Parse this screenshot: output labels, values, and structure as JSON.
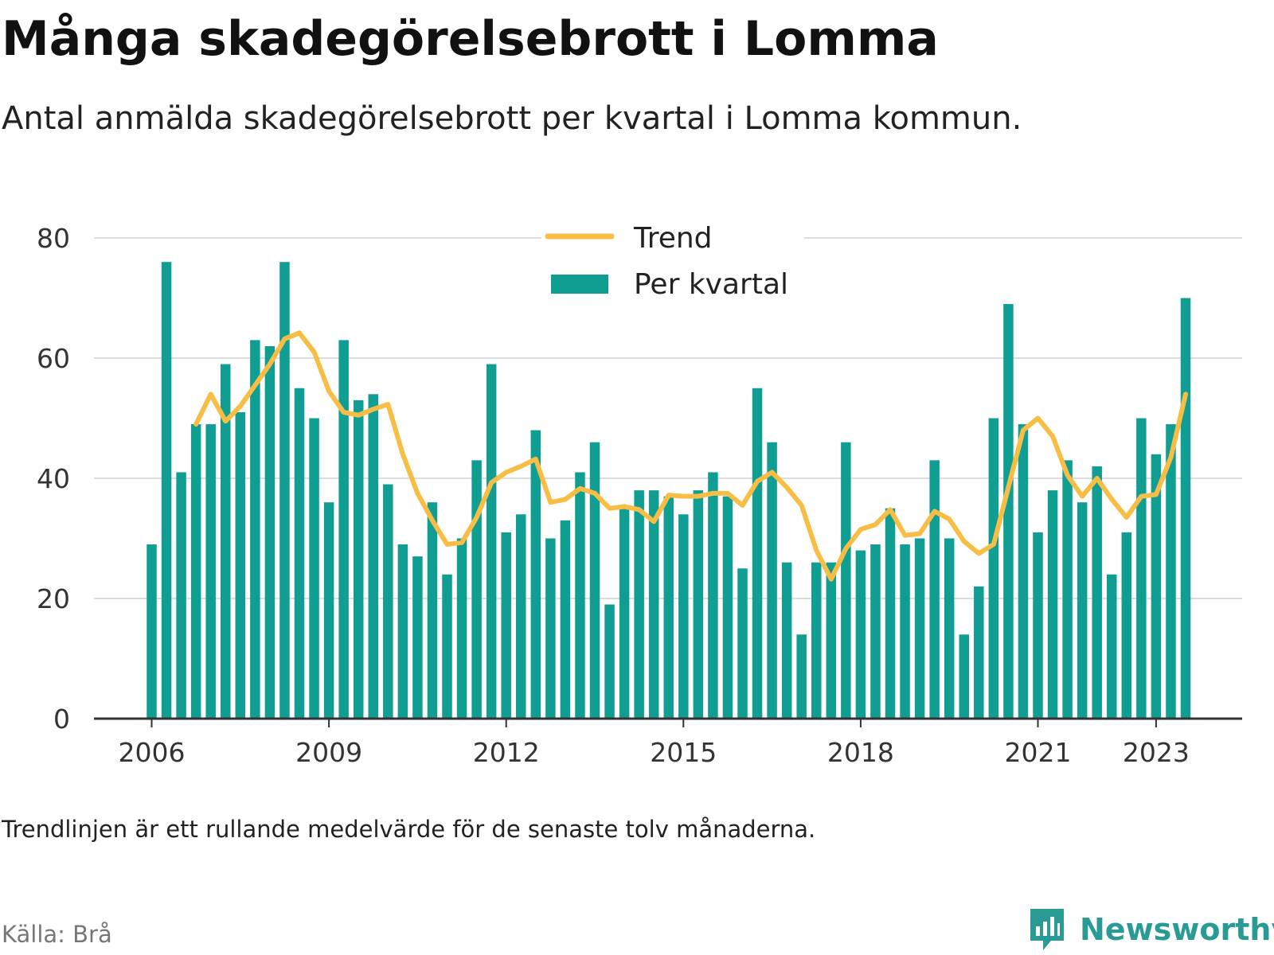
{
  "title": "Många skadegörelsebrott i Lomma",
  "subtitle": "Antal anmälda skadegörelsebrott per kvartal i Lomma kommun.",
  "note": "Trendlinjen är ett rullande medelvärde för de senaste tolv månaderna.",
  "source": "Källa: Brå",
  "brand": {
    "name": "Newsworthy",
    "icon": "newsworthy-logo-icon"
  },
  "colors": {
    "bars": "#109e93",
    "trend": "#f7bd45",
    "grid": "#dddddd",
    "axis": "#333333"
  },
  "chart_data": {
    "type": "bar",
    "ylim": [
      0,
      80
    ],
    "y_ticks": [
      0,
      20,
      40,
      60,
      80
    ],
    "x_tick_labels": [
      "2006",
      "2009",
      "2012",
      "2015",
      "2018",
      "2021",
      "2023"
    ],
    "grid": true,
    "legend_position": "top-center",
    "categories": [
      "2006 Q1",
      "2006 Q2",
      "2006 Q3",
      "2006 Q4",
      "2007 Q1",
      "2007 Q2",
      "2007 Q3",
      "2007 Q4",
      "2008 Q1",
      "2008 Q2",
      "2008 Q3",
      "2008 Q4",
      "2009 Q1",
      "2009 Q2",
      "2009 Q3",
      "2009 Q4",
      "2010 Q1",
      "2010 Q2",
      "2010 Q3",
      "2010 Q4",
      "2011 Q1",
      "2011 Q2",
      "2011 Q3",
      "2011 Q4",
      "2012 Q1",
      "2012 Q2",
      "2012 Q3",
      "2012 Q4",
      "2013 Q1",
      "2013 Q2",
      "2013 Q3",
      "2013 Q4",
      "2014 Q1",
      "2014 Q2",
      "2014 Q3",
      "2014 Q4",
      "2015 Q1",
      "2015 Q2",
      "2015 Q3",
      "2015 Q4",
      "2016 Q1",
      "2016 Q2",
      "2016 Q3",
      "2016 Q4",
      "2017 Q1",
      "2017 Q2",
      "2017 Q3",
      "2017 Q4",
      "2018 Q1",
      "2018 Q2",
      "2018 Q3",
      "2018 Q4",
      "2019 Q1",
      "2019 Q2",
      "2019 Q3",
      "2019 Q4",
      "2020 Q1",
      "2020 Q2",
      "2020 Q3",
      "2020 Q4",
      "2021 Q1",
      "2021 Q2",
      "2021 Q3",
      "2021 Q4",
      "2022 Q1",
      "2022 Q2",
      "2022 Q3",
      "2022 Q4",
      "2023 Q1",
      "2023 Q2",
      "2023 Q3"
    ],
    "series": [
      {
        "name": "Per kvartal",
        "type": "bar",
        "values": [
          29,
          76,
          41,
          49,
          49,
          59,
          51,
          63,
          62,
          76,
          55,
          50,
          36,
          63,
          53,
          54,
          39,
          29,
          27,
          36,
          24,
          30,
          43,
          59,
          31,
          34,
          48,
          30,
          33,
          41,
          46,
          19,
          35,
          38,
          38,
          37,
          34,
          38,
          41,
          37,
          25,
          55,
          46,
          26,
          14,
          26,
          26,
          46,
          28,
          29,
          35,
          29,
          30,
          43,
          30,
          14,
          22,
          50,
          69,
          49,
          31,
          38,
          43,
          36,
          42,
          24,
          31,
          50,
          44,
          49,
          70
        ]
      },
      {
        "name": "Trend",
        "type": "line",
        "values": [
          null,
          null,
          null,
          49,
          54,
          49.5,
          52,
          55.5,
          59,
          63.2,
          64.2,
          61,
          54.5,
          51,
          50.5,
          51.5,
          52.3,
          44,
          37.5,
          33,
          29,
          29.3,
          33.5,
          39.3,
          41,
          42,
          43.2,
          36,
          36.5,
          38.3,
          37.5,
          35,
          35.3,
          34.8,
          32.8,
          37.2,
          37,
          37,
          37.5,
          37.5,
          35.5,
          39.5,
          41,
          38.5,
          35.5,
          28,
          23.2,
          28.3,
          31.5,
          32.3,
          34.8,
          30.5,
          30.8,
          34.5,
          33.2,
          29.5,
          27.5,
          29,
          38.5,
          48,
          50,
          47,
          40.5,
          37,
          40,
          36.5,
          33.5,
          37,
          37.3,
          43.5,
          54
        ]
      }
    ]
  }
}
